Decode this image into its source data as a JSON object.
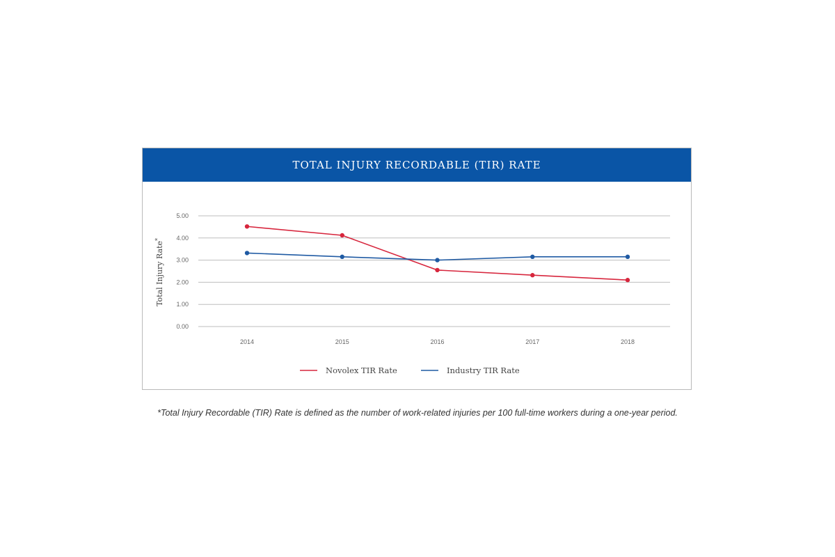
{
  "chart_data": {
    "type": "line",
    "title": "TOTAL INJURY RECORDABLE (TIR) RATE",
    "ylabel": "Total Injury Rate",
    "ylabel_superscript": "*",
    "xlabel": "",
    "categories": [
      "2014",
      "2015",
      "2016",
      "2017",
      "2018"
    ],
    "yticks": [
      "0.00",
      "1.00",
      "2.00",
      "3.00",
      "4.00",
      "5.00"
    ],
    "ylim": [
      0,
      5
    ],
    "grid": true,
    "legend_position": "bottom-center",
    "series": [
      {
        "name": "Novolex TIR Rate",
        "color": "#d7263d",
        "values": [
          4.52,
          4.12,
          2.55,
          2.32,
          2.1
        ]
      },
      {
        "name": "Industry TIR Rate",
        "color": "#1f5aa3",
        "values": [
          3.32,
          3.15,
          3.0,
          3.15,
          3.15
        ]
      }
    ],
    "header_color": "#0a55a6"
  },
  "footnote": "*Total Injury Recordable (TIR) Rate is defined as the number of work-related injuries per 100 full-time workers during a one-year period."
}
